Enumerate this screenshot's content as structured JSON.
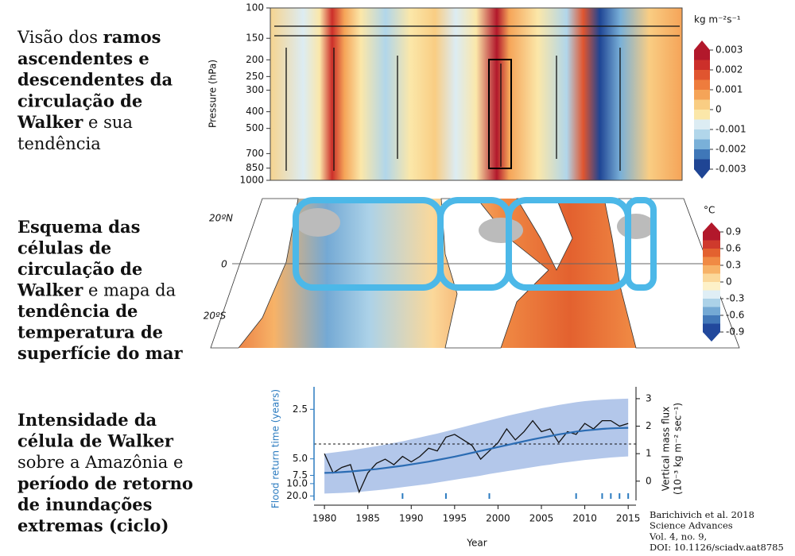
{
  "captions": [
    {
      "lines": [
        [
          {
            "text": "Visão dos ",
            "bold": false
          },
          {
            "text": "ramos",
            "bold": true
          }
        ],
        [
          {
            "text": "ascendentes e",
            "bold": true
          }
        ],
        [
          {
            "text": "descendentes da",
            "bold": true
          }
        ],
        [
          {
            "text": "circulação de",
            "bold": true
          }
        ],
        [
          {
            "text": "Walker",
            "bold": true
          },
          {
            "text": " e sua",
            "bold": false
          }
        ],
        [
          {
            "text": "tendência",
            "bold": false
          }
        ]
      ]
    },
    {
      "lines": [
        [
          {
            "text": "Esquema das",
            "bold": true
          }
        ],
        [
          {
            "text": "células de",
            "bold": true
          }
        ],
        [
          {
            "text": "circulação de",
            "bold": true
          }
        ],
        [
          {
            "text": "Walker",
            "bold": true
          },
          {
            "text": "  e mapa da",
            "bold": false
          }
        ],
        [
          {
            "text": "tendência de",
            "bold": true
          }
        ],
        [
          {
            "text": "temperatura de",
            "bold": true
          }
        ],
        [
          {
            "text": "superfície do mar",
            "bold": true
          }
        ]
      ]
    },
    {
      "lines": [
        [
          {
            "text": "Intensidade da",
            "bold": true
          }
        ],
        [
          {
            "text": "célula de Walker",
            "bold": true
          }
        ],
        [
          {
            "text": "sobre a Amazônia e",
            "bold": false
          }
        ],
        [
          {
            "text": "período de retorno",
            "bold": true
          }
        ],
        [
          {
            "text": "de inundações",
            "bold": true
          }
        ],
        [
          {
            "text": "extremas (ciclo)",
            "bold": true
          }
        ]
      ]
    }
  ],
  "chart_data": [
    {
      "type": "heatmap",
      "ylabel": "Pressure (hPa)",
      "ylim": [
        100,
        1000
      ],
      "log_y": true,
      "yticks": [
        100,
        150,
        200,
        250,
        300,
        400,
        500,
        700,
        850,
        1000
      ],
      "colorbar": {
        "label": "kg m⁻²s⁻¹",
        "clim": [
          -0.003,
          0.003
        ],
        "ticks": [
          0.003,
          0.002,
          0.001,
          0,
          -0.001,
          -0.002,
          -0.003
        ],
        "colors": [
          "#b2182b",
          "#cc2f2a",
          "#e0552f",
          "#ee7c3d",
          "#f5a458",
          "#f9cd83",
          "#fbe7a9",
          "#dcecf3",
          "#b1d6ea",
          "#79b0d8",
          "#3f77b8",
          "#1f4594"
        ]
      }
    },
    {
      "type": "map",
      "lat_labels": [
        "20ºN",
        "0",
        "20ºS"
      ],
      "colorbar": {
        "label": "°C",
        "clim": [
          -0.9,
          0.9
        ],
        "ticks": [
          0.9,
          0.6,
          0.3,
          0,
          -0.3,
          -0.6,
          -0.9
        ],
        "colors": [
          "#b2182b",
          "#cf3a2c",
          "#e3612f",
          "#f08a44",
          "#f7b267",
          "#fbd89a",
          "#fdf1c8",
          "#dfeef5",
          "#acd2e8",
          "#74a9d4",
          "#4278b8",
          "#21489c"
        ]
      }
    },
    {
      "type": "line",
      "xlabel": "Year",
      "ylabel": "Flood return time (years)",
      "y2label": [
        "Vertical mass flux",
        "(10⁻³ kg m⁻² sec⁻¹)"
      ],
      "x": [
        1980,
        1981,
        1982,
        1983,
        1984,
        1985,
        1986,
        1987,
        1988,
        1989,
        1990,
        1991,
        1992,
        1993,
        1994,
        1995,
        1996,
        1997,
        1998,
        1999,
        2000,
        2001,
        2002,
        2003,
        2004,
        2005,
        2006,
        2007,
        2008,
        2009,
        2010,
        2011,
        2012,
        2013,
        2014,
        2015
      ],
      "xlim": [
        1978.8,
        2015.9
      ],
      "xticks": [
        1980,
        1985,
        1990,
        1995,
        2000,
        2005,
        2010,
        2015
      ],
      "ylim": [
        2.15,
        31
      ],
      "yscale": "reciprocal",
      "yticks": [
        {
          "value": 2.5,
          "label": "2.5"
        },
        {
          "value": 5,
          "label": "5.0"
        },
        {
          "value": 7.5,
          "label": "7.5"
        },
        {
          "value": 10,
          "label": "10.0"
        },
        {
          "value": 20,
          "label": "20.0"
        }
      ],
      "y2lim": [
        -0.7,
        3.2
      ],
      "y2ticks": [
        0,
        1,
        2,
        3
      ],
      "series": [
        {
          "color": "#111111",
          "axis": "y2",
          "values": [
            1.0,
            0.3,
            0.5,
            0.6,
            -0.4,
            0.3,
            0.65,
            0.8,
            0.6,
            0.9,
            0.7,
            0.9,
            1.2,
            1.1,
            1.6,
            1.7,
            1.5,
            1.3,
            0.8,
            1.1,
            1.4,
            1.9,
            1.5,
            1.8,
            2.2,
            1.8,
            1.9,
            1.4,
            1.8,
            1.7,
            2.1,
            1.9,
            2.2,
            2.2,
            2.0,
            2.1
          ]
        },
        {
          "color": "#2b6cb3",
          "axis": "y2",
          "values": [
            0.3,
            0.31,
            0.33,
            0.35,
            0.38,
            0.41,
            0.44,
            0.48,
            0.52,
            0.56,
            0.61,
            0.66,
            0.71,
            0.77,
            0.83,
            0.89,
            0.96,
            1.03,
            1.1,
            1.17,
            1.24,
            1.31,
            1.38,
            1.45,
            1.52,
            1.58,
            1.64,
            1.7,
            1.75,
            1.8,
            1.84,
            1.87,
            1.9,
            1.92,
            1.93,
            1.94
          ]
        }
      ],
      "band": {
        "color": "#b3c7ea",
        "axis": "y2",
        "lower": [
          -0.45,
          -0.44,
          -0.43,
          -0.41,
          -0.39,
          -0.36,
          -0.33,
          -0.3,
          -0.26,
          -0.22,
          -0.18,
          -0.14,
          -0.1,
          -0.05,
          0,
          0.05,
          0.1,
          0.15,
          0.2,
          0.26,
          0.31,
          0.36,
          0.41,
          0.46,
          0.51,
          0.56,
          0.6,
          0.65,
          0.69,
          0.73,
          0.77,
          0.8,
          0.83,
          0.86,
          0.88,
          0.9
        ],
        "upper": [
          1.0,
          1.04,
          1.08,
          1.12,
          1.17,
          1.22,
          1.27,
          1.33,
          1.39,
          1.45,
          1.52,
          1.59,
          1.66,
          1.73,
          1.81,
          1.89,
          1.97,
          2.05,
          2.13,
          2.21,
          2.29,
          2.37,
          2.44,
          2.51,
          2.58,
          2.65,
          2.71,
          2.77,
          2.82,
          2.87,
          2.91,
          2.94,
          2.96,
          2.98,
          2.99,
          3.0
        ]
      },
      "hline": {
        "value": 1.35,
        "axis": "y2"
      },
      "event_years": [
        1989,
        1994,
        1999,
        2009,
        2012,
        2013,
        2014,
        2015
      ],
      "left_axis_color": "#2b7bc0"
    }
  ],
  "citation": [
    "Barichivich et al. 2018",
    "Science Advances",
    "Vol. 4, no. 9,",
    "DOI: 10.1126/sciadv.aat8785"
  ]
}
